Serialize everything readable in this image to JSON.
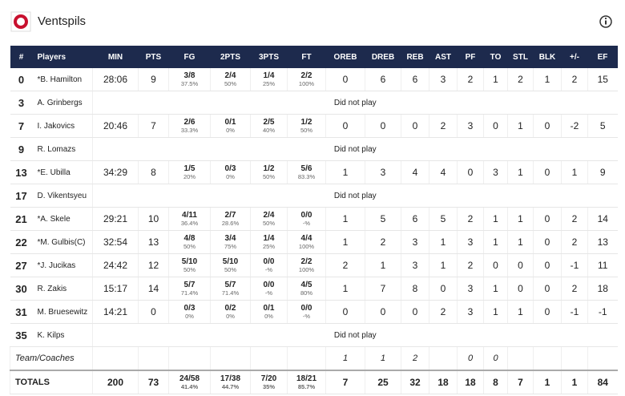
{
  "header": {
    "title": "Ventspils"
  },
  "table": {
    "columns": [
      "#",
      "Players",
      "MIN",
      "PTS",
      "FG",
      "2PTS",
      "3PTS",
      "FT",
      "OREB",
      "DREB",
      "REB",
      "AST",
      "PF",
      "TO",
      "STL",
      "BLK",
      "+/-",
      "EF"
    ],
    "rows": [
      {
        "no": "0",
        "name": "*B. Hamilton",
        "cells": [
          "28:06",
          "9",
          [
            "3/8",
            "37.5%"
          ],
          [
            "2/4",
            "50%"
          ],
          [
            "1/4",
            "25%"
          ],
          [
            "2/2",
            "100%"
          ],
          "0",
          "6",
          "6",
          "3",
          "2",
          "1",
          "2",
          "1",
          "2",
          "15"
        ]
      },
      {
        "no": "3",
        "name": "A. Grinbergs",
        "dnp": "Did not play"
      },
      {
        "no": "7",
        "name": "I. Jakovics",
        "cells": [
          "20:46",
          "7",
          [
            "2/6",
            "33.3%"
          ],
          [
            "0/1",
            "0%"
          ],
          [
            "2/5",
            "40%"
          ],
          [
            "1/2",
            "50%"
          ],
          "0",
          "0",
          "0",
          "2",
          "3",
          "0",
          "1",
          "0",
          "-2",
          "5"
        ]
      },
      {
        "no": "9",
        "name": "R. Lomazs",
        "dnp": "Did not play"
      },
      {
        "no": "13",
        "name": "*E. Ubilla",
        "cells": [
          "34:29",
          "8",
          [
            "1/5",
            "20%"
          ],
          [
            "0/3",
            "0%"
          ],
          [
            "1/2",
            "50%"
          ],
          [
            "5/6",
            "83.3%"
          ],
          "1",
          "3",
          "4",
          "4",
          "0",
          "3",
          "1",
          "0",
          "1",
          "9"
        ]
      },
      {
        "no": "17",
        "name": "D. Vikentsyeu",
        "dnp": "Did not play"
      },
      {
        "no": "21",
        "name": "*A. Skele",
        "cells": [
          "29:21",
          "10",
          [
            "4/11",
            "36.4%"
          ],
          [
            "2/7",
            "28.6%"
          ],
          [
            "2/4",
            "50%"
          ],
          [
            "0/0",
            "-%"
          ],
          "1",
          "5",
          "6",
          "5",
          "2",
          "1",
          "1",
          "0",
          "2",
          "14"
        ]
      },
      {
        "no": "22",
        "name": "*M. Gulbis(C)",
        "cells": [
          "32:54",
          "13",
          [
            "4/8",
            "50%"
          ],
          [
            "3/4",
            "75%"
          ],
          [
            "1/4",
            "25%"
          ],
          [
            "4/4",
            "100%"
          ],
          "1",
          "2",
          "3",
          "1",
          "3",
          "1",
          "1",
          "0",
          "2",
          "13"
        ]
      },
      {
        "no": "27",
        "name": "*J. Jucikas",
        "cells": [
          "24:42",
          "12",
          [
            "5/10",
            "50%"
          ],
          [
            "5/10",
            "50%"
          ],
          [
            "0/0",
            "-%"
          ],
          [
            "2/2",
            "100%"
          ],
          "2",
          "1",
          "3",
          "1",
          "2",
          "0",
          "0",
          "0",
          "-1",
          "11"
        ]
      },
      {
        "no": "30",
        "name": "R. Zakis",
        "cells": [
          "15:17",
          "14",
          [
            "5/7",
            "71.4%"
          ],
          [
            "5/7",
            "71.4%"
          ],
          [
            "0/0",
            "-%"
          ],
          [
            "4/5",
            "80%"
          ],
          "1",
          "7",
          "8",
          "0",
          "3",
          "1",
          "0",
          "0",
          "2",
          "18"
        ]
      },
      {
        "no": "31",
        "name": "M. Bruesewitz",
        "cells": [
          "14:21",
          "0",
          [
            "0/3",
            "0%"
          ],
          [
            "0/2",
            "0%"
          ],
          [
            "0/1",
            "0%"
          ],
          [
            "0/0",
            "-%"
          ],
          "0",
          "0",
          "0",
          "2",
          "3",
          "1",
          "1",
          "0",
          "-1",
          "-1"
        ]
      },
      {
        "no": "35",
        "name": "K. Kilps",
        "dnp": "Did not play"
      }
    ],
    "team": {
      "label": "Team/Coaches",
      "cells": [
        null,
        null,
        null,
        null,
        null,
        null,
        "1",
        "1",
        "2",
        null,
        "0",
        "0",
        null,
        null,
        null,
        null
      ]
    },
    "totals": {
      "label": "TOTALS",
      "cells": [
        "200",
        "73",
        [
          "24/58",
          "41.4%"
        ],
        [
          "17/38",
          "44.7%"
        ],
        [
          "7/20",
          "35%"
        ],
        [
          "18/21",
          "85.7%"
        ],
        "7",
        "25",
        "32",
        "18",
        "18",
        "8",
        "7",
        "1",
        "1",
        "84"
      ]
    }
  }
}
